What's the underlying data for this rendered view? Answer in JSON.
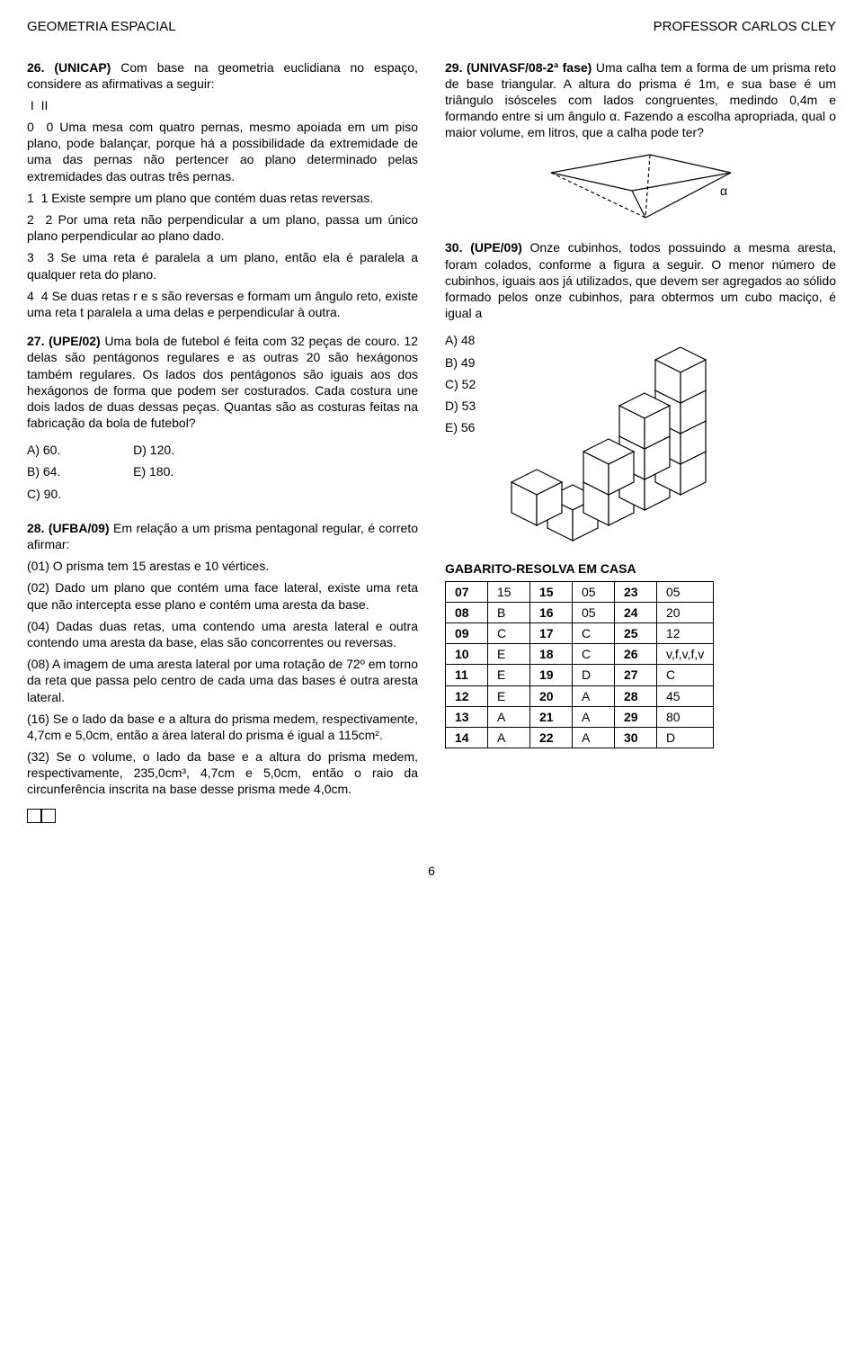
{
  "header": {
    "left": "GEOMETRIA ESPACIAL",
    "right": "PROFESSOR CARLOS CLEY"
  },
  "q26": {
    "title": "26. (UNICAP)",
    "intro": " Com base na geometria euclidiana no espaço, considere as afirmativas a seguir:",
    "tf_header_1": "I",
    "tf_header_2": "II",
    "items": [
      {
        "a": "0",
        "b": "0",
        "text": "Uma mesa com quatro pernas, mesmo apoiada em um piso plano, pode balançar, porque há a possibilidade da extremidade de uma das pernas não pertencer ao plano determinado pelas extremidades das outras três pernas."
      },
      {
        "a": "1",
        "b": "1",
        "text": "Existe sempre um plano que contém duas retas reversas."
      },
      {
        "a": "2",
        "b": "2",
        "text": "Por uma reta não perpendicular a um plano, passa um único plano perpendicular ao plano dado."
      },
      {
        "a": "3",
        "b": "3",
        "text": "Se uma reta é paralela a um plano, então ela é paralela a qualquer reta do plano."
      },
      {
        "a": "4",
        "b": "4",
        "text": "Se duas retas r e s são reversas e formam um ângulo reto, existe uma reta t paralela a uma delas e perpendicular à outra."
      }
    ]
  },
  "q27": {
    "title": "27. (UPE/02)",
    "text": " Uma bola de futebol é feita com 32 peças de couro. 12 delas são pentágonos regulares e as outras 20 são hexágonos também regulares. Os lados dos pentágonos são iguais aos dos hexágonos de forma que podem ser costurados. Cada costura une dois lados de duas dessas peças. Quantas são as costuras feitas na fabricação da bola de futebol?",
    "options": {
      "a": "A) 60.",
      "b": "B) 64.",
      "c": "C) 90.",
      "d": "D) 120.",
      "e": "E) 180."
    }
  },
  "q28": {
    "title": "28. (UFBA/09)",
    "intro": " Em relação a um prisma pentagonal regular, é correto afirmar:",
    "items": [
      "(01) O prisma tem 15 arestas e 10 vértices.",
      "(02) Dado um plano que contém uma face lateral, existe uma reta que não intercepta esse plano e contém uma aresta da base.",
      "(04) Dadas duas retas, uma contendo uma aresta lateral e outra contendo uma aresta da base, elas são concorrentes ou reversas.",
      "(08) A imagem de uma aresta lateral por uma rotação de 72º em torno da reta que passa pelo centro de cada uma das bases é outra aresta lateral.",
      "(16) Se o lado da base e a altura do prisma medem, respectivamente, 4,7cm e 5,0cm, então a área lateral do prisma é igual a 115cm².",
      "(32) Se o volume, o lado da base e a altura do prisma medem, respectivamente, 235,0cm³, 4,7cm e 5,0cm, então o raio da circunferência inscrita na base desse prisma mede 4,0cm."
    ]
  },
  "q29": {
    "title": "29. (UNIVASF/08-2ª fase)",
    "text": " Uma calha tem a forma de um prisma reto de base triangular. A altura do prisma é 1m, e sua base é um triângulo isósceles com lados congruentes, medindo 0,4m e formando entre si um ângulo α. Fazendo a escolha apropriada, qual o maior volume, em litros, que a calha pode ter?",
    "alpha": "α",
    "svg": {
      "stroke": "#000000",
      "dash": "4,3"
    }
  },
  "q30": {
    "title": "30. (UPE/09)",
    "text": " Onze cubinhos, todos possuindo a mesma aresta, foram colados, conforme a figura a seguir. O menor número de cubinhos, iguais aos já utilizados, que devem ser agregados ao sólido formado pelos onze cubinhos, para obtermos um cubo maciço, é igual a",
    "options": {
      "a": "A) 48",
      "b": "B) 49",
      "c": "C) 52",
      "d": "D) 53",
      "e": "E) 56"
    },
    "svg": {
      "stroke": "#000000",
      "fill": "#ffffff"
    }
  },
  "gabarito": {
    "title": "GABARITO-RESOLVA EM CASA",
    "rows": [
      [
        "07",
        "15",
        "15",
        "05",
        "23",
        "05"
      ],
      [
        "08",
        "B",
        "16",
        "05",
        "24",
        "20"
      ],
      [
        "09",
        "C",
        "17",
        "C",
        "25",
        "12"
      ],
      [
        "10",
        "E",
        "18",
        "C",
        "26",
        "v,f,v,f,v"
      ],
      [
        "11",
        "E",
        "19",
        "D",
        "27",
        "C"
      ],
      [
        "12",
        "E",
        "20",
        "A",
        "28",
        "45"
      ],
      [
        "13",
        "A",
        "21",
        "A",
        "29",
        "80"
      ],
      [
        "14",
        "A",
        "22",
        "A",
        "30",
        "D"
      ]
    ]
  },
  "page_number": "6"
}
